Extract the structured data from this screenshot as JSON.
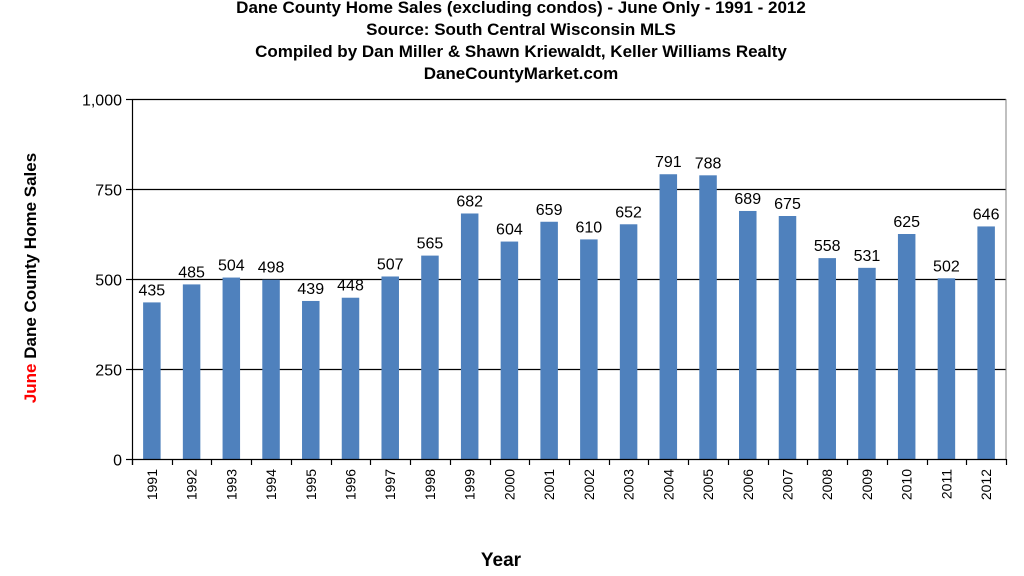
{
  "titles": [
    "Dane County Home Sales (excluding condos) - June Only - 1991 -  2012",
    "Source: South Central Wisconsin MLS",
    "Compiled by Dan Miller & Shawn Kriewaldt, Keller Williams Realty",
    "DaneCountyMarket.com"
  ],
  "colors": {
    "bar": "#4f81bd",
    "accent": "#ff0000",
    "grid": "#000000"
  },
  "chart_data": {
    "type": "bar",
    "categories": [
      "1991",
      "1992",
      "1993",
      "1994",
      "1995",
      "1996",
      "1997",
      "1998",
      "1999",
      "2000",
      "2001",
      "2002",
      "2003",
      "2004",
      "2005",
      "2006",
      "2007",
      "2008",
      "2009",
      "2010",
      "2011",
      "2012"
    ],
    "values": [
      435,
      485,
      504,
      498,
      439,
      448,
      507,
      565,
      682,
      604,
      659,
      610,
      652,
      791,
      788,
      689,
      675,
      558,
      531,
      625,
      502,
      646
    ],
    "data_labels": [
      "435",
      "485",
      "504",
      "498",
      "439",
      "448",
      "507",
      "565",
      "682",
      "604",
      "659",
      "610",
      "652",
      "791",
      "788",
      "689",
      "675",
      "558",
      "531",
      "625",
      "502",
      "646"
    ],
    "xlabel": "Year",
    "ylabel_accent": "June",
    "ylabel_rest": " Dane County Home Sales",
    "ylim": [
      0,
      1000
    ],
    "yticks": [
      0,
      250,
      500,
      750,
      1000
    ],
    "ytick_labels": [
      "0",
      "250",
      "500",
      "750",
      "1,000"
    ],
    "grid": true,
    "legend": "none"
  }
}
